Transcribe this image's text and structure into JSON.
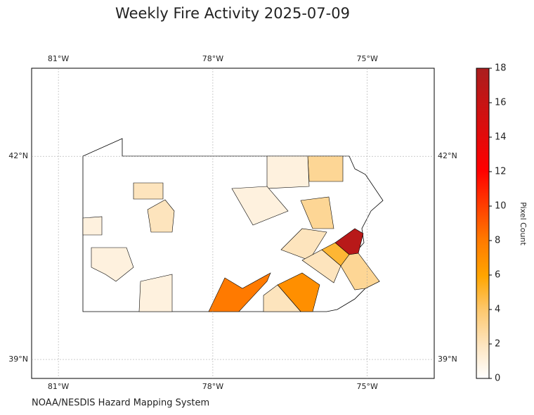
{
  "title": "Weekly Fire Activity 2025-07-09",
  "source": "NOAA/NESDIS Hazard Mapping System",
  "chart_data": {
    "type": "choropleth",
    "xlim": [
      -81.52,
      -73.7
    ],
    "ylim": [
      38.72,
      43.3
    ],
    "xticks": [
      {
        "value": -81,
        "label": "81°W"
      },
      {
        "value": -78,
        "label": "78°W"
      },
      {
        "value": -75,
        "label": "75°W"
      }
    ],
    "yticks": [
      {
        "value": 39,
        "label": "39°N"
      },
      {
        "value": 42,
        "label": "42°N"
      }
    ],
    "grid": true,
    "colorbar": {
      "label": "Pixel Count",
      "lim": [
        0,
        18
      ],
      "ticks": [
        0,
        2,
        4,
        6,
        8,
        10,
        12,
        14,
        16,
        18
      ]
    },
    "regions": {
      "values": [
        17,
        8,
        7,
        5,
        3,
        3,
        3,
        2,
        2,
        1,
        1,
        1,
        1,
        2,
        1,
        2,
        2
      ]
    }
  }
}
